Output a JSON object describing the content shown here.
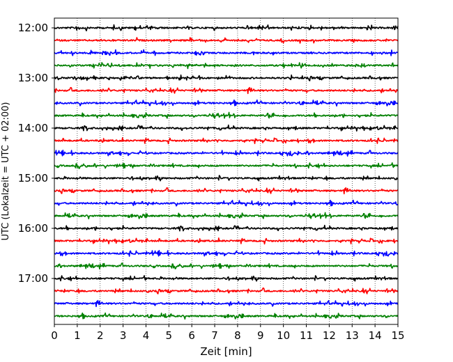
{
  "chart_data": {
    "type": "line",
    "chart_kind": "helicorder",
    "xlabel": "Zeit  [min]",
    "ylabel": "UTC (Lokalzeit = UTC + 02:00)",
    "xlim": [
      0,
      15
    ],
    "x_ticks": [
      "0",
      "1",
      "2",
      "3",
      "4",
      "5",
      "6",
      "7",
      "8",
      "9",
      "10",
      "11",
      "12",
      "13",
      "14",
      "15"
    ],
    "y_tick_labels": [
      "12:00",
      "13:00",
      "14:00",
      "15:00",
      "16:00",
      "17:00"
    ],
    "trace_start_times": [
      "12:00",
      "12:15",
      "12:30",
      "12:45",
      "13:00",
      "13:15",
      "13:30",
      "13:45",
      "14:00",
      "14:15",
      "14:30",
      "14:45",
      "15:00",
      "15:15",
      "15:30",
      "15:45",
      "16:00",
      "16:15",
      "16:30",
      "16:45",
      "17:00",
      "17:15",
      "17:30",
      "17:45"
    ],
    "minutes_per_trace": 15,
    "trace_color_cycle": [
      "#000000",
      "#ff0000",
      "#0000ff",
      "#008000"
    ],
    "vertical_grid": true,
    "grid_style": "dotted"
  }
}
